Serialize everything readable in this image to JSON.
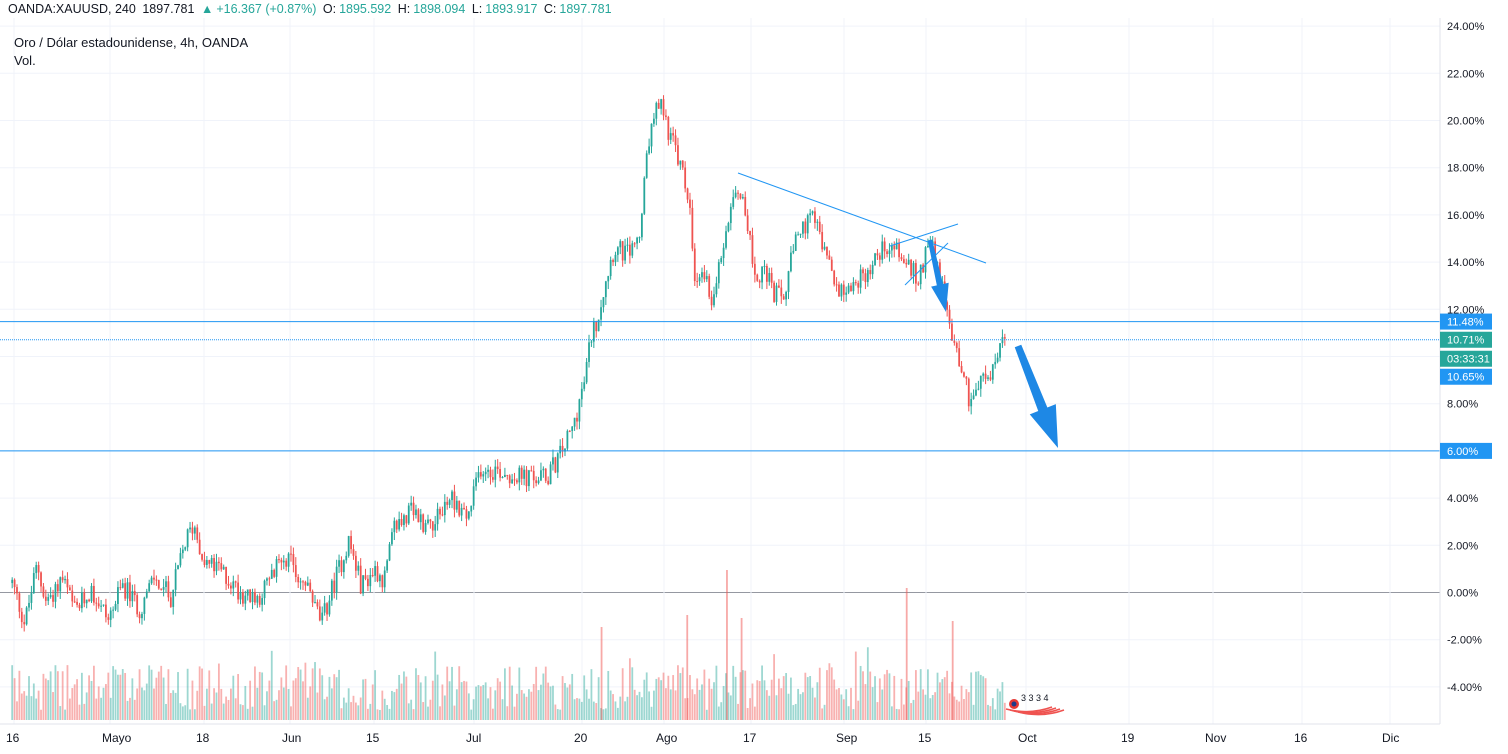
{
  "header": {
    "symbol": "OANDA:XAUUSD, 240",
    "last": "1897.781",
    "change": "+16.367 (+0.87%)",
    "open_label": "O:",
    "open": "1895.592",
    "high_label": "H:",
    "high": "1898.094",
    "low_label": "L:",
    "low": "1893.917",
    "close_label": "C:",
    "close": "1897.781"
  },
  "legend": {
    "title": "Oro / Dólar estadounidense, 4h, OANDA",
    "volume": "Vol."
  },
  "colors": {
    "up": "#26a69a",
    "down": "#ef5350",
    "line": "#2196f3",
    "arrow": "#1e88e5",
    "grid": "#f0f3fa",
    "zero": "#9598a1"
  },
  "chart_data": {
    "type": "candlestick",
    "y_unit": "percent",
    "y_ticks": [
      24,
      22,
      20,
      18,
      16,
      14,
      12,
      10,
      8,
      6,
      4,
      2,
      0,
      -2,
      -4
    ],
    "y_tick_labels": [
      "24.00%",
      "22.00%",
      "20.00%",
      "18.00%",
      "16.00%",
      "14.00%",
      "12.00%",
      "10.00%",
      "8.00%",
      "6.00%",
      "4.00%",
      "2.00%",
      "0.00%",
      "-2.00%",
      "-4.00%"
    ],
    "x_labels": [
      "16",
      "Mayo",
      "18",
      "Jun",
      "15",
      "Jul",
      "20",
      "Ago",
      "17",
      "Sep",
      "15",
      "Oct",
      "19",
      "Nov",
      "16",
      "Dic"
    ],
    "price_path": [
      [
        0.2,
        0.4
      ],
      [
        0.8,
        -1.3
      ],
      [
        1.4,
        1.2
      ],
      [
        1.8,
        -0.4
      ],
      [
        2.6,
        0.6
      ],
      [
        3.2,
        -0.8
      ],
      [
        4.0,
        0.1
      ],
      [
        4.8,
        -1.1
      ],
      [
        5.5,
        0.3
      ],
      [
        6.3,
        -0.7
      ],
      [
        7.0,
        0.6
      ],
      [
        7.8,
        -0.2
      ],
      [
        8.5,
        2.2
      ],
      [
        8.9,
        2.9
      ],
      [
        9.4,
        1.3
      ],
      [
        10.2,
        0.9
      ],
      [
        10.9,
        0.2
      ],
      [
        11.8,
        -0.4
      ],
      [
        12.6,
        0.6
      ],
      [
        13.2,
        1.7
      ],
      [
        13.8,
        0.8
      ],
      [
        14.4,
        0.1
      ],
      [
        15.0,
        -1.3
      ],
      [
        15.6,
        0.4
      ],
      [
        16.3,
        2.2
      ],
      [
        16.9,
        0.3
      ],
      [
        17.6,
        1.0
      ],
      [
        18.0,
        0.5
      ],
      [
        18.5,
        2.8
      ],
      [
        19.3,
        3.4
      ],
      [
        20.0,
        2.9
      ],
      [
        20.6,
        3.2
      ],
      [
        21.2,
        4.1
      ],
      [
        22.0,
        3.1
      ],
      [
        22.6,
        5.3
      ],
      [
        23.4,
        5.2
      ],
      [
        24.4,
        4.9
      ],
      [
        25.2,
        4.8
      ],
      [
        25.8,
        4.9
      ],
      [
        26.4,
        5.8
      ],
      [
        27.0,
        6.9
      ],
      [
        27.6,
        9.0
      ],
      [
        27.9,
        10.9
      ],
      [
        28.2,
        11.6
      ],
      [
        28.6,
        13.3
      ],
      [
        29.0,
        14.6
      ],
      [
        29.6,
        14.3
      ],
      [
        30.2,
        15.0
      ],
      [
        30.7,
        19.4
      ],
      [
        31.2,
        20.8
      ],
      [
        31.6,
        19.6
      ],
      [
        32.2,
        18.0
      ],
      [
        32.6,
        16.5
      ],
      [
        32.9,
        12.5
      ],
      [
        33.2,
        13.8
      ],
      [
        33.7,
        12.4
      ],
      [
        34.2,
        14.6
      ],
      [
        34.7,
        17.2
      ],
      [
        35.2,
        16.8
      ],
      [
        35.7,
        13.5
      ],
      [
        36.2,
        13.6
      ],
      [
        36.6,
        12.7
      ],
      [
        37.1,
        12.4
      ],
      [
        37.6,
        14.6
      ],
      [
        38.1,
        15.5
      ],
      [
        38.6,
        15.8
      ],
      [
        39.1,
        14.3
      ],
      [
        39.6,
        13.0
      ],
      [
        40.1,
        12.9
      ],
      [
        40.7,
        13.2
      ],
      [
        41.3,
        13.8
      ],
      [
        41.9,
        14.7
      ],
      [
        42.4,
        14.7
      ],
      [
        43.0,
        13.9
      ],
      [
        43.6,
        13.2
      ],
      [
        44.1,
        15.3
      ],
      [
        44.6,
        13.3
      ],
      [
        45.0,
        11.5
      ],
      [
        45.5,
        10.0
      ],
      [
        46.0,
        8.2
      ],
      [
        46.5,
        8.9
      ],
      [
        47.0,
        9.1
      ],
      [
        47.5,
        10.5
      ],
      [
        47.8,
        10.7
      ]
    ],
    "volume": {
      "max": 100,
      "spikes": [
        [
          34.4,
          100
        ],
        [
          43.0,
          88
        ],
        [
          32.5,
          70
        ],
        [
          35.1,
          68
        ],
        [
          28.4,
          62
        ],
        [
          45.2,
          66
        ]
      ]
    },
    "annotations": {
      "horizontal_lines": [
        {
          "value": 11.48,
          "label": "11.48%"
        },
        {
          "value": 10.71,
          "label": "10.71%",
          "style": "dotted"
        },
        {
          "value": 6.0,
          "label": "6.00%"
        }
      ],
      "countdown": "03:33:31",
      "current_low_label": "10.65%",
      "events_label": "3 3 3 4"
    }
  }
}
